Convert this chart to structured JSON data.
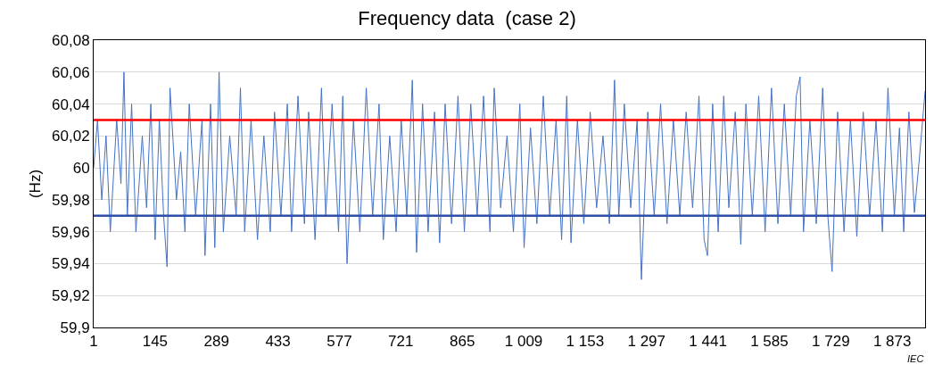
{
  "chart_data": {
    "type": "line",
    "title": "Frequency data  (case 2)",
    "ylabel": "(Hz)",
    "x": [
      1,
      10,
      20,
      30,
      40,
      55,
      65,
      72,
      80,
      90,
      100,
      115,
      125,
      135,
      145,
      155,
      165,
      173,
      180,
      195,
      205,
      215,
      225,
      240,
      255,
      262,
      275,
      285,
      295,
      305,
      320,
      335,
      345,
      355,
      370,
      385,
      400,
      415,
      425,
      440,
      455,
      465,
      480,
      495,
      505,
      520,
      535,
      545,
      560,
      575,
      585,
      595,
      610,
      625,
      640,
      655,
      670,
      680,
      695,
      710,
      722,
      735,
      748,
      758,
      772,
      785,
      800,
      812,
      825,
      840,
      855,
      870,
      885,
      900,
      915,
      930,
      940,
      955,
      970,
      985,
      1000,
      1010,
      1025,
      1040,
      1055,
      1070,
      1085,
      1098,
      1110,
      1120,
      1135,
      1150,
      1165,
      1180,
      1195,
      1210,
      1222,
      1232,
      1245,
      1260,
      1275,
      1285,
      1300,
      1315,
      1330,
      1345,
      1360,
      1375,
      1390,
      1405,
      1420,
      1432,
      1440,
      1452,
      1465,
      1478,
      1490,
      1505,
      1518,
      1530,
      1545,
      1560,
      1575,
      1590,
      1605,
      1620,
      1635,
      1648,
      1657,
      1665,
      1680,
      1695,
      1710,
      1722,
      1732,
      1745,
      1760,
      1775,
      1790,
      1805,
      1820,
      1835,
      1850,
      1863,
      1878,
      1890,
      1900,
      1912,
      1925,
      1938,
      1950
    ],
    "series": [
      {
        "color": "#4472c4",
        "values": [
          60.0,
          60.03,
          59.98,
          60.02,
          59.96,
          60.03,
          59.99,
          60.06,
          59.97,
          60.04,
          59.96,
          60.02,
          59.975,
          60.04,
          59.955,
          60.03,
          59.97,
          59.938,
          60.05,
          59.98,
          60.01,
          59.96,
          60.04,
          59.97,
          60.03,
          59.945,
          60.04,
          59.95,
          60.06,
          59.96,
          60.02,
          59.97,
          60.05,
          59.96,
          60.03,
          59.955,
          60.02,
          59.96,
          60.035,
          59.97,
          60.04,
          59.96,
          60.045,
          59.965,
          60.035,
          59.955,
          60.05,
          59.97,
          60.04,
          59.96,
          60.045,
          59.94,
          60.03,
          59.96,
          60.05,
          59.97,
          60.04,
          59.955,
          60.02,
          59.96,
          60.03,
          59.97,
          60.055,
          59.947,
          60.04,
          59.96,
          60.035,
          59.953,
          60.04,
          59.965,
          60.045,
          59.96,
          60.04,
          59.97,
          60.045,
          59.96,
          60.05,
          59.975,
          60.02,
          59.96,
          60.04,
          59.95,
          60.025,
          59.965,
          60.045,
          59.97,
          60.03,
          59.955,
          60.045,
          59.953,
          60.03,
          59.965,
          60.035,
          59.975,
          60.02,
          59.965,
          60.055,
          59.97,
          60.04,
          59.975,
          60.03,
          59.93,
          60.035,
          59.97,
          60.04,
          59.965,
          60.03,
          59.97,
          60.035,
          59.975,
          60.045,
          59.955,
          59.945,
          60.04,
          59.96,
          60.045,
          59.975,
          60.035,
          59.952,
          60.04,
          59.97,
          60.045,
          59.96,
          60.05,
          59.965,
          60.04,
          59.97,
          60.045,
          60.057,
          59.96,
          60.03,
          59.965,
          60.05,
          59.97,
          59.935,
          60.035,
          59.96,
          60.03,
          59.957,
          60.035,
          59.97,
          60.03,
          59.96,
          60.05,
          59.97,
          60.025,
          59.96,
          60.035,
          59.972,
          60.01,
          60.048
        ]
      }
    ],
    "xlim": [
      1,
      1950
    ],
    "xticks": [
      1,
      145,
      289,
      433,
      577,
      721,
      865,
      {
        "value": 1009,
        "label": "1 009"
      },
      {
        "value": 1153,
        "label": "1 153"
      },
      {
        "value": 1297,
        "label": "1 297"
      },
      {
        "value": 1441,
        "label": "1 441"
      },
      {
        "value": 1585,
        "label": "1 585"
      },
      {
        "value": 1729,
        "label": "1 729"
      },
      {
        "value": 1873,
        "label": "1 873"
      }
    ],
    "ylim": [
      59.9,
      60.08
    ],
    "yticks": [
      {
        "value": 59.9,
        "label": "59,9"
      },
      {
        "value": 59.92,
        "label": "59,92"
      },
      {
        "value": 59.94,
        "label": "59,94"
      },
      {
        "value": 59.96,
        "label": "59,96"
      },
      {
        "value": 59.98,
        "label": "59,98"
      },
      60,
      {
        "value": 60.02,
        "label": "60,02"
      },
      {
        "value": 60.04,
        "label": "60,04"
      },
      {
        "value": 60.06,
        "label": "60,06"
      },
      {
        "value": 60.08,
        "label": "60,08"
      }
    ],
    "ref_lines": [
      {
        "axis": "y",
        "value": 60.03,
        "color": "#ff0000"
      },
      {
        "axis": "y",
        "value": 59.97,
        "color": "#2f4fa8"
      }
    ],
    "grid": "y",
    "marker": "none",
    "line_style": "solid",
    "annotations": [
      "IEC"
    ]
  }
}
